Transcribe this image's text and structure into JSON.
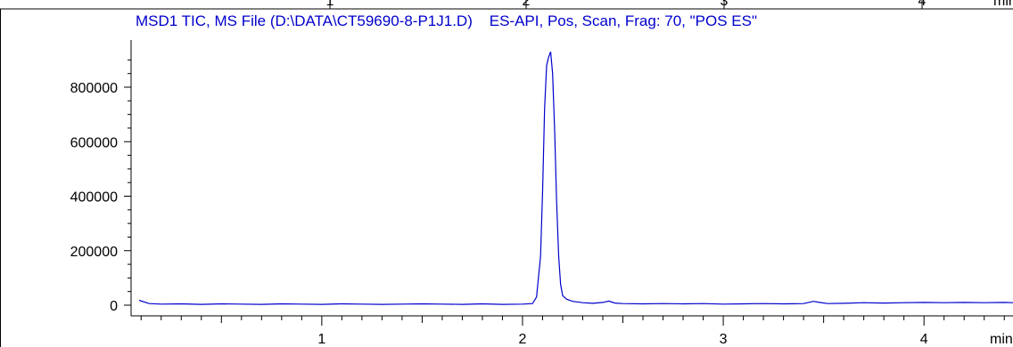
{
  "top_strip": {
    "ticks": [
      "1",
      "2",
      "3",
      "4"
    ],
    "unit": "min"
  },
  "chart_data": {
    "type": "line",
    "title": "MSD1 TIC, MS File (D:\\DATA\\CT59690-8-P1J1.D)    ES-API, Pos, Scan, Frag: 70, \"POS ES\"",
    "xlabel": "min",
    "ylabel": "",
    "xlim": [
      0.05,
      4.55
    ],
    "ylim": [
      -25000,
      950000
    ],
    "x_ticks": [
      1,
      2,
      3,
      4
    ],
    "x_tick_labels": [
      "1",
      "2",
      "3",
      "4"
    ],
    "y_ticks": [
      0,
      200000,
      400000,
      600000,
      800000
    ],
    "y_tick_labels": [
      "0",
      "200000",
      "400000",
      "600000",
      "800000"
    ],
    "grid": false,
    "color": "#0000cc",
    "series": [
      {
        "x": [
          0.09,
          0.14,
          0.2,
          0.3,
          0.4,
          0.5,
          0.6,
          0.7,
          0.8,
          0.9,
          1.0,
          1.1,
          1.2,
          1.3,
          1.4,
          1.5,
          1.6,
          1.7,
          1.8,
          1.9,
          2.0,
          2.05,
          2.07,
          2.09,
          2.1,
          2.11,
          2.12,
          2.13,
          2.14,
          2.15,
          2.16,
          2.17,
          2.18,
          2.19,
          2.2,
          2.22,
          2.25,
          2.3,
          2.35,
          2.4,
          2.43,
          2.46,
          2.5,
          2.6,
          2.7,
          2.8,
          2.9,
          3.0,
          3.1,
          3.2,
          3.3,
          3.4,
          3.45,
          3.48,
          3.52,
          3.6,
          3.7,
          3.8,
          3.9,
          4.0,
          4.1,
          4.2,
          4.3,
          4.4,
          4.5,
          4.55
        ],
        "y": [
          18000,
          6000,
          4000,
          5000,
          3000,
          5000,
          4000,
          3000,
          5000,
          4000,
          3000,
          5000,
          4000,
          3000,
          4000,
          5000,
          4000,
          3000,
          5000,
          3000,
          4000,
          6000,
          30000,
          180000,
          420000,
          720000,
          880000,
          910000,
          930000,
          850000,
          640000,
          380000,
          180000,
          75000,
          35000,
          22000,
          14000,
          9000,
          7000,
          10000,
          15000,
          8000,
          6000,
          5000,
          6000,
          5000,
          6000,
          4000,
          5000,
          6000,
          5000,
          6000,
          14000,
          10000,
          6000,
          7000,
          9000,
          8000,
          9000,
          10000,
          9000,
          10000,
          9000,
          10000,
          9000,
          9000
        ]
      }
    ]
  }
}
